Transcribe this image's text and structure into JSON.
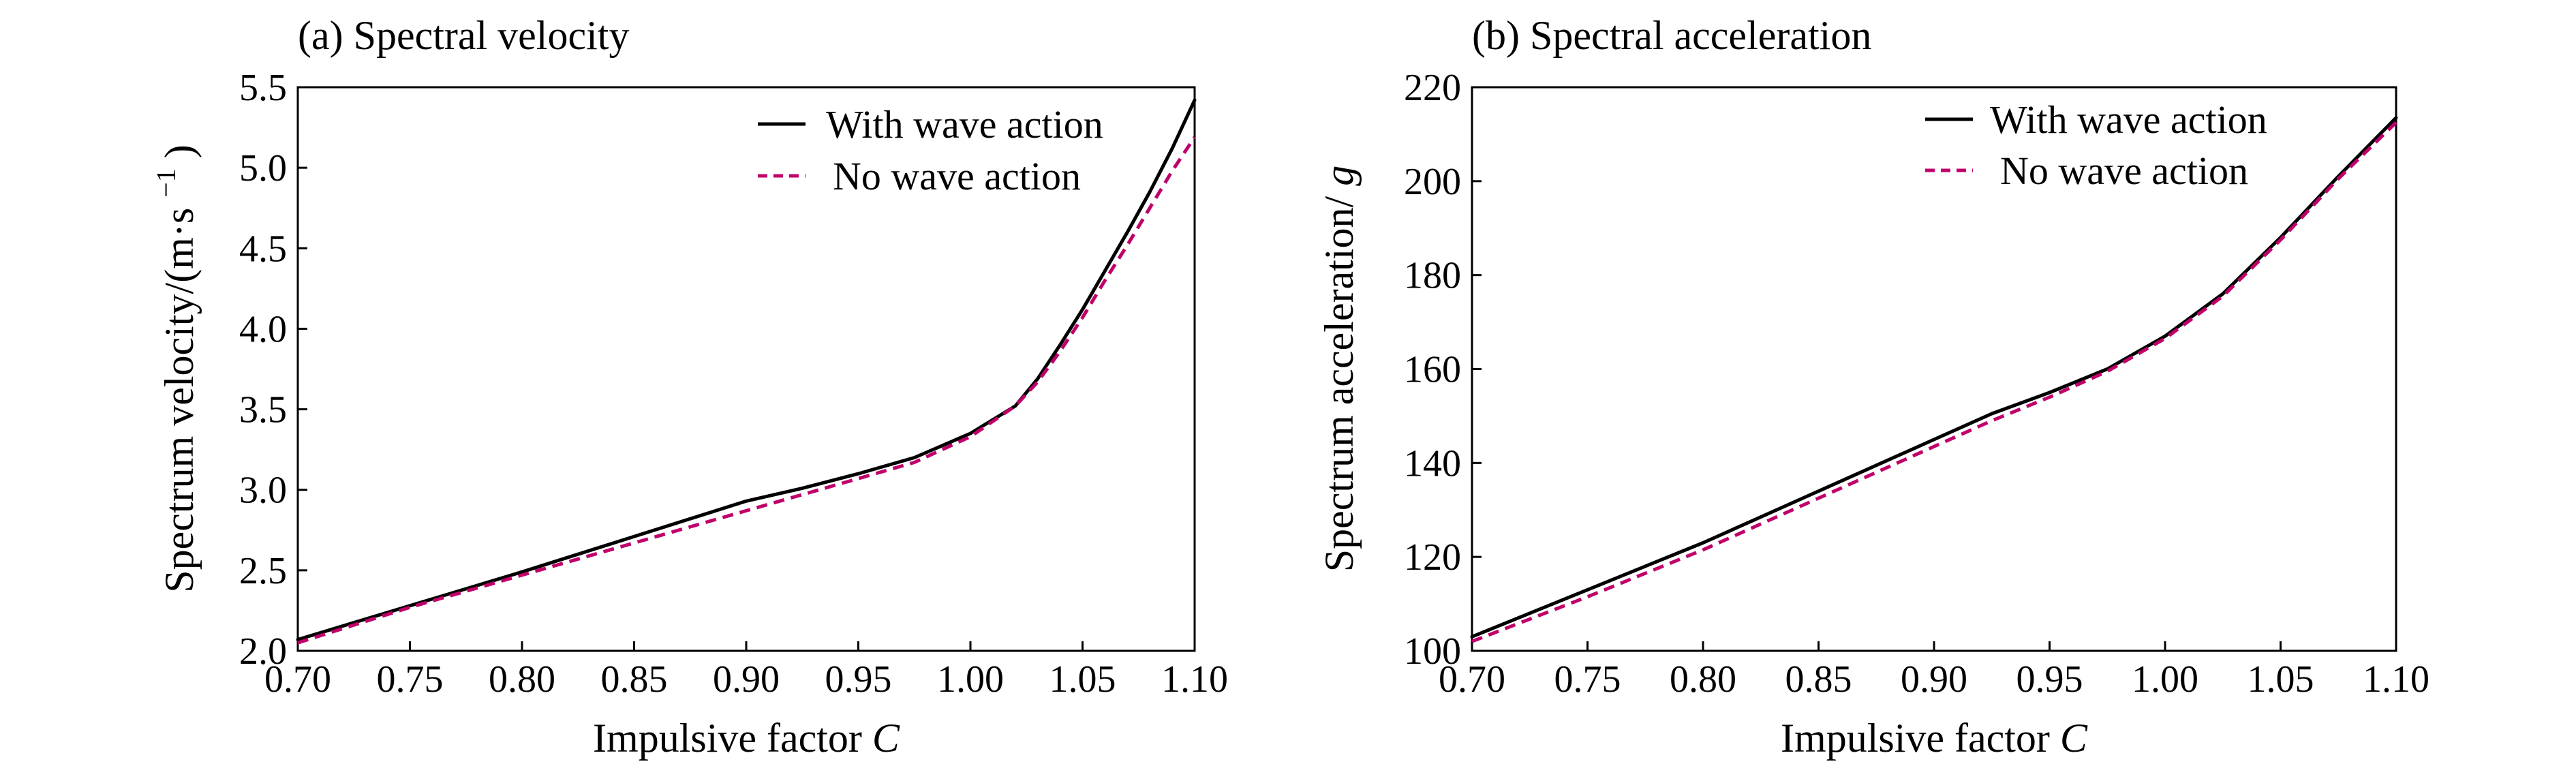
{
  "chart_data": [
    {
      "type": "line",
      "title": "(a) Spectral velocity",
      "xlabel": "Impulsive factor",
      "xlabel_symbol": "C",
      "ylabel_main": "Spectrum velocity/(m·s",
      "ylabel_sup": "−1",
      "ylabel_close": ")",
      "xlim": [
        0.7,
        1.1
      ],
      "ylim": [
        2.0,
        5.5
      ],
      "xticks": [
        "0.70",
        "0.75",
        "0.80",
        "0.85",
        "0.90",
        "0.95",
        "1.00",
        "1.05",
        "1.10"
      ],
      "yticks": [
        "2.0",
        "2.5",
        "3.0",
        "3.5",
        "4.0",
        "4.5",
        "5.0",
        "5.5"
      ],
      "legend_position": "top-right",
      "series": [
        {
          "name": "With wave action",
          "color": "#000000",
          "dash": "solid",
          "x": [
            0.7,
            0.75,
            0.8,
            0.85,
            0.9,
            0.925,
            0.95,
            0.975,
            1.0,
            1.02,
            1.03,
            1.04,
            1.05,
            1.06,
            1.07,
            1.08,
            1.09,
            1.1
          ],
          "y": [
            2.07,
            2.28,
            2.49,
            2.71,
            2.93,
            3.01,
            3.1,
            3.2,
            3.35,
            3.52,
            3.69,
            3.9,
            4.12,
            4.36,
            4.6,
            4.85,
            5.12,
            5.42
          ]
        },
        {
          "name": "No wave action",
          "color": "#c0006a",
          "dash": "dashed",
          "x": [
            0.7,
            0.75,
            0.8,
            0.85,
            0.9,
            0.925,
            0.95,
            0.975,
            1.0,
            1.02,
            1.03,
            1.04,
            1.05,
            1.06,
            1.07,
            1.08,
            1.09,
            1.1
          ],
          "y": [
            2.05,
            2.27,
            2.47,
            2.67,
            2.87,
            2.97,
            3.07,
            3.17,
            3.33,
            3.52,
            3.67,
            3.86,
            4.07,
            4.3,
            4.52,
            4.75,
            4.98,
            5.19
          ]
        }
      ]
    },
    {
      "type": "line",
      "title": "(b) Spectral acceleration",
      "xlabel": "Impulsive factor",
      "xlabel_symbol": "C",
      "ylabel_main": "Spectrum acceleration/",
      "ylabel_symbol": "g",
      "xlim": [
        0.7,
        1.1
      ],
      "ylim": [
        100,
        220
      ],
      "xticks": [
        "0.70",
        "0.75",
        "0.80",
        "0.85",
        "0.90",
        "0.95",
        "1.00",
        "1.05",
        "1.10"
      ],
      "yticks": [
        "100",
        "120",
        "140",
        "160",
        "180",
        "200",
        "220"
      ],
      "legend_position": "top-right",
      "series": [
        {
          "name": "With wave action",
          "color": "#000000",
          "dash": "solid",
          "x": [
            0.7,
            0.75,
            0.8,
            0.85,
            0.9,
            0.925,
            0.95,
            0.975,
            1.0,
            1.025,
            1.05,
            1.075,
            1.1
          ],
          "y": [
            103,
            113,
            123,
            134,
            145,
            150.5,
            155,
            160,
            167,
            176,
            188,
            201,
            213.5
          ]
        },
        {
          "name": "No wave action",
          "color": "#c0006a",
          "dash": "dashed",
          "x": [
            0.7,
            0.75,
            0.8,
            0.85,
            0.9,
            0.925,
            0.95,
            0.975,
            1.0,
            1.025,
            1.05,
            1.075,
            1.1
          ],
          "y": [
            102,
            111.5,
            121.5,
            132.5,
            143.5,
            149,
            154,
            159.5,
            166.5,
            175.5,
            187.5,
            200.5,
            212.5
          ]
        }
      ]
    }
  ]
}
